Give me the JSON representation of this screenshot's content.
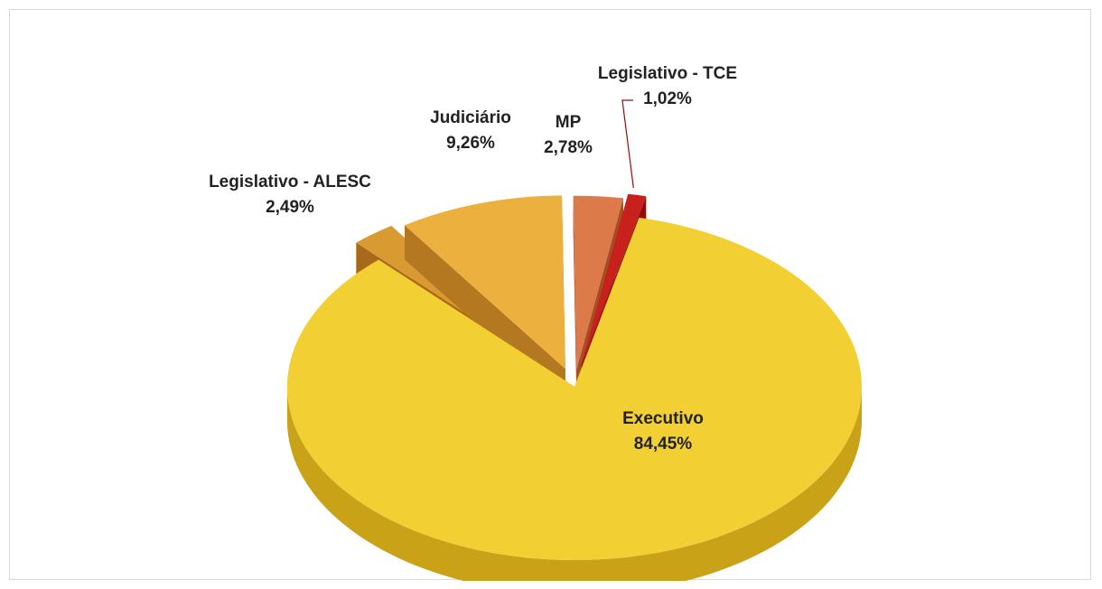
{
  "chart_data": {
    "type": "pie",
    "title": "",
    "three_d": true,
    "exploded_slices": true,
    "slices": [
      {
        "name": "Executivo",
        "value": 84.45,
        "label": "Executivo",
        "value_label": "84,45%",
        "color": "#f2cf32",
        "side_color": "#c9a217"
      },
      {
        "name": "Legislativo - ALESC",
        "value": 2.49,
        "label": "Legislativo - ALESC",
        "value_label": "2,49%",
        "color": "#d99a32",
        "side_color": "#a86a1a"
      },
      {
        "name": "Judiciário",
        "value": 9.26,
        "label": "Judiciário",
        "value_label": "9,26%",
        "color": "#ecb03e",
        "side_color": "#b47820"
      },
      {
        "name": "MP",
        "value": 2.78,
        "label": "MP",
        "value_label": "2,78%",
        "color": "#dc7a4a",
        "side_color": "#a84d22"
      },
      {
        "name": "Legislativo - TCE",
        "value": 1.02,
        "label": "Legislativo - TCE",
        "value_label": "1,02%",
        "color": "#c8201c",
        "side_color": "#8c0f0c"
      }
    ]
  }
}
